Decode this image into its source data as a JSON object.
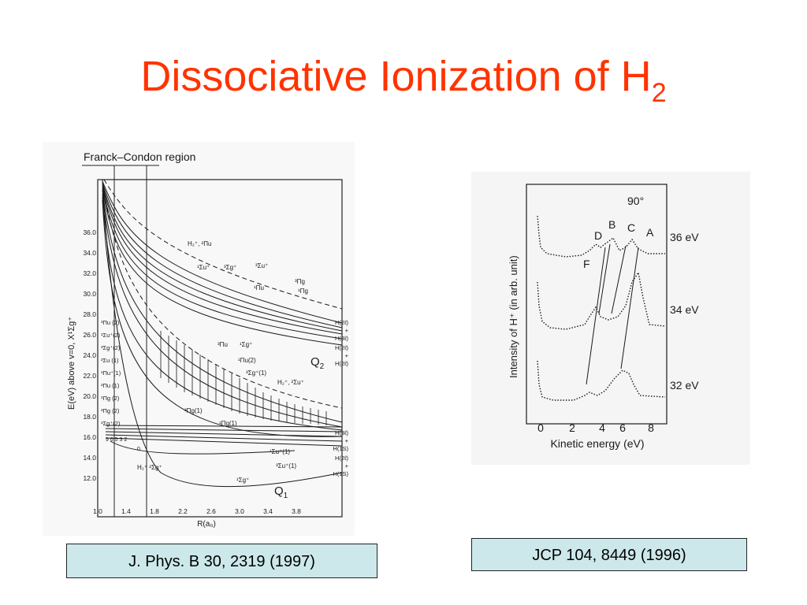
{
  "title": {
    "main": "Dissociative Ionization of H",
    "subscript": "2"
  },
  "left_figure": {
    "header": "Franck–Condon region",
    "y_axis_label": "E(eV) above v=0, X¹Σg⁺",
    "y_ticks": [
      "36.0",
      "34.0",
      "32.0",
      "30.0",
      "28.0",
      "26.0",
      "24.0",
      "22.0",
      "20.0",
      "18.0",
      "16.0",
      "14.0",
      "12.0"
    ],
    "x_axis_label": "R(a₀)",
    "x_ticks": [
      "1.0",
      "1.4",
      "1.8",
      "2.2",
      "2.6",
      "3.0",
      "3.4",
      "3.8"
    ],
    "state_labels_left": [
      "³Πu (2)",
      "¹Σu⁺(2)",
      "³Σg⁺(2)",
      "³Σu (1)",
      "¹Πu⁺(1)",
      "³Πu (1)",
      "¹Πg (2)",
      "³Πg (2)",
      "¹Σg⁺(2)"
    ],
    "curve_labels": {
      "h2plus_pi": "H₂⁺, ²Πu",
      "sigma_u": "¹Σu⁺",
      "sigma_g3": "³Σg⁺",
      "sigma_u3": "³Σu⁺",
      "pi_g3": "³Πg",
      "pi_g1": "¹Πg",
      "pi_u1": "¹Πu",
      "pi_u3": "³Πu",
      "sigma_g1": "¹Σg⁺",
      "pi_u2": "¹Πu(2)",
      "sigma_g_1": "³Σg⁺(1)",
      "h2plus_sigma_u": "H₂⁺, ²Σu⁺",
      "pi_g_1": "³Πg(1)",
      "pi_g1_1": "¹Πg(1)",
      "sigma_u_1": "¹Σu⁺(1)",
      "sigma_u3_1": "³Σu⁺(1)",
      "h2plus_sigma_g": "H₂⁺ ²Σg⁺",
      "sigma_g_bottom": "¹Σg⁺",
      "vib_levels": "9 6 5 3 2",
      "v0": "0"
    },
    "q2": "Q",
    "q2_sub": "2",
    "q1": "Q",
    "q1_sub": "1",
    "asymptotes": {
      "a1": "H(2ℓ)",
      "a2": "+",
      "a3": "H(3ℓ)",
      "b1": "H(2ℓ)",
      "b2": "+",
      "b3": "H(2ℓ)",
      "c1": "H(3ℓ)",
      "c2": "+",
      "c3": "H(1S)",
      "d1": "H(2ℓ)",
      "d2": "+",
      "d3": "H(1S)"
    }
  },
  "right_figure": {
    "angle": "90°",
    "y_axis_label": "Intensity of H⁺ (in arb. unit)",
    "x_axis_label": "Kinetic energy (eV)",
    "x_ticks": [
      "0",
      "2",
      "4",
      "6",
      "8"
    ],
    "peak_labels": [
      "A",
      "B",
      "C",
      "D",
      "F"
    ],
    "energies": [
      "36 eV",
      "34 eV",
      "32 eV"
    ]
  },
  "references": {
    "left": "J. Phys. B 30, 2319 (1997)",
    "right": "JCP 104, 8449 (1996)"
  }
}
